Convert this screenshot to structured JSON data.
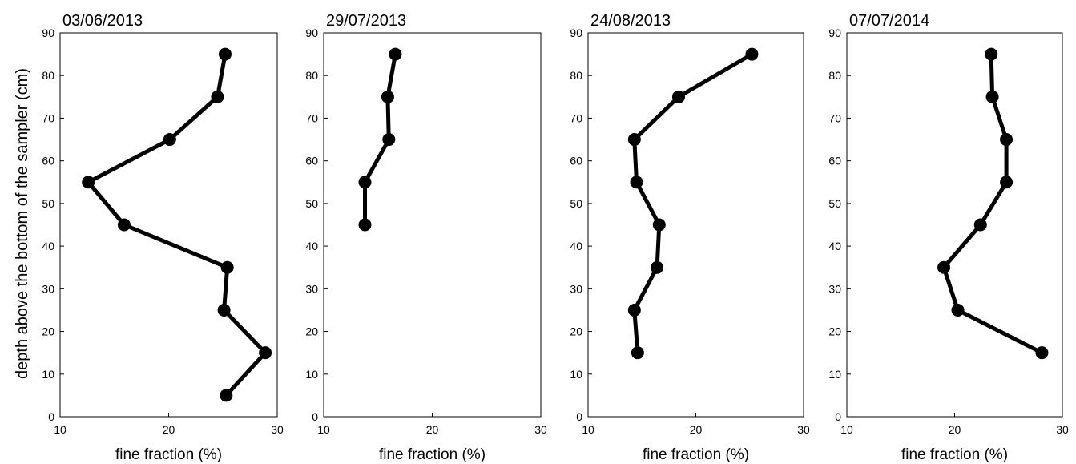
{
  "figure": {
    "ylabel": "depth above the bottom of the sampler (cm)"
  },
  "chart_data": [
    {
      "type": "line",
      "title": "03/06/2013",
      "xlabel": "fine fraction (%)",
      "ylabel": "",
      "xlim": [
        10,
        30
      ],
      "ylim": [
        0,
        90
      ],
      "xticks": [
        10,
        20,
        30
      ],
      "yticks": [
        0,
        10,
        20,
        30,
        40,
        50,
        60,
        70,
        80,
        90
      ],
      "series": [
        {
          "x": [
            25.2,
            24.5,
            20.1,
            12.6,
            15.9,
            25.4,
            25.1,
            28.9,
            25.3
          ],
          "y": [
            85,
            75,
            65,
            55,
            45,
            35,
            25,
            15,
            5
          ]
        }
      ]
    },
    {
      "type": "line",
      "title": "29/07/2013",
      "xlabel": "fine fraction (%)",
      "ylabel": "",
      "xlim": [
        10,
        30
      ],
      "ylim": [
        0,
        90
      ],
      "xticks": [
        10,
        20,
        30
      ],
      "yticks": [
        0,
        10,
        20,
        30,
        40,
        50,
        60,
        70,
        80,
        90
      ],
      "series": [
        {
          "x": [
            16.6,
            15.9,
            16.0,
            13.8,
            13.8
          ],
          "y": [
            85,
            75,
            65,
            55,
            45
          ]
        }
      ]
    },
    {
      "type": "line",
      "title": "24/08/2013",
      "xlabel": "fine fraction (%)",
      "ylabel": "",
      "xlim": [
        10,
        30
      ],
      "ylim": [
        0,
        90
      ],
      "xticks": [
        10,
        20,
        30
      ],
      "yticks": [
        0,
        10,
        20,
        30,
        40,
        50,
        60,
        70,
        80,
        90
      ],
      "series": [
        {
          "x": [
            25.2,
            18.4,
            14.3,
            14.5,
            16.6,
            16.4,
            14.3,
            14.6
          ],
          "y": [
            85,
            75,
            65,
            55,
            45,
            35,
            25,
            15
          ]
        }
      ]
    },
    {
      "type": "line",
      "title": "07/07/2014",
      "xlabel": "fine fraction (%)",
      "ylabel": "",
      "xlim": [
        10,
        30
      ],
      "ylim": [
        0,
        90
      ],
      "xticks": [
        10,
        20,
        30
      ],
      "yticks": [
        0,
        10,
        20,
        30,
        40,
        50,
        60,
        70,
        80,
        90
      ],
      "series": [
        {
          "x": [
            23.4,
            23.5,
            24.8,
            24.8,
            22.4,
            19.0,
            20.3,
            28.1
          ],
          "y": [
            85,
            75,
            65,
            55,
            45,
            35,
            25,
            15
          ]
        }
      ]
    }
  ]
}
